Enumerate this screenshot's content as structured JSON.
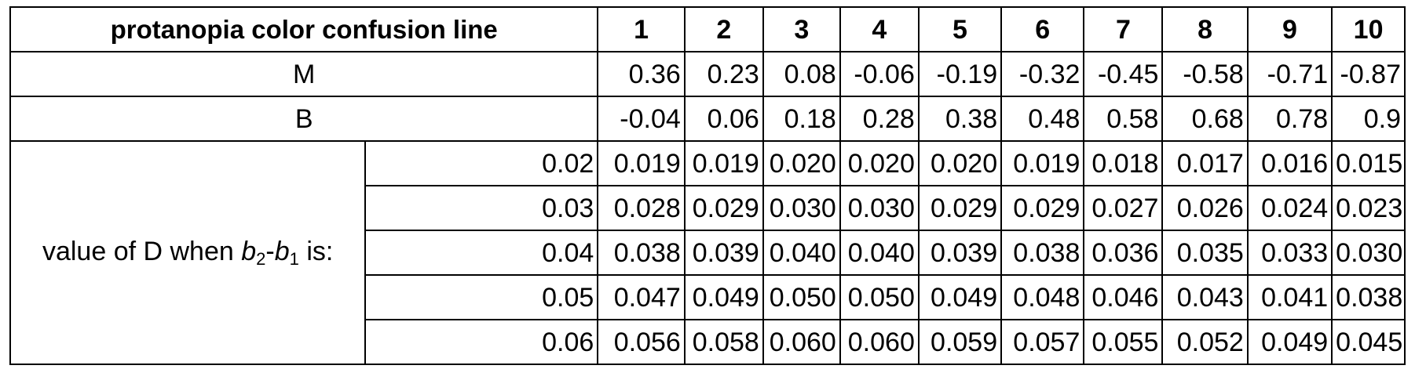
{
  "table": {
    "header_title": "protanopia color confusion line",
    "columns": [
      "1",
      "2",
      "3",
      "4",
      "5",
      "6",
      "7",
      "8",
      "9",
      "10"
    ],
    "m_label": "M",
    "m_values": [
      "0.36",
      "0.23",
      "0.08",
      "-0.06",
      "-0.19",
      "-0.32",
      "-0.45",
      "-0.58",
      "-0.71",
      "-0.87"
    ],
    "b_label": "B",
    "b_values": [
      "-0.04",
      "0.06",
      "0.18",
      "0.28",
      "0.38",
      "0.48",
      "0.58",
      "0.68",
      "0.78",
      "0.9"
    ],
    "d_label": {
      "prefix": "value of D when ",
      "b2": "b",
      "b2_sub": "2",
      "dash": "-",
      "b1": "b",
      "b1_sub": "1",
      "suffix": " is:"
    },
    "d_rows": [
      {
        "b_diff": "0.02",
        "values": [
          "0.019",
          "0.019",
          "0.020",
          "0.020",
          "0.020",
          "0.019",
          "0.018",
          "0.017",
          "0.016",
          "0.015"
        ]
      },
      {
        "b_diff": "0.03",
        "values": [
          "0.028",
          "0.029",
          "0.030",
          "0.030",
          "0.029",
          "0.029",
          "0.027",
          "0.026",
          "0.024",
          "0.023"
        ]
      },
      {
        "b_diff": "0.04",
        "values": [
          "0.038",
          "0.039",
          "0.040",
          "0.040",
          "0.039",
          "0.038",
          "0.036",
          "0.035",
          "0.033",
          "0.030"
        ]
      },
      {
        "b_diff": "0.05",
        "values": [
          "0.047",
          "0.049",
          "0.050",
          "0.050",
          "0.049",
          "0.048",
          "0.046",
          "0.043",
          "0.041",
          "0.038"
        ]
      },
      {
        "b_diff": "0.06",
        "values": [
          "0.056",
          "0.058",
          "0.060",
          "0.060",
          "0.059",
          "0.057",
          "0.055",
          "0.052",
          "0.049",
          "0.045"
        ]
      }
    ]
  }
}
